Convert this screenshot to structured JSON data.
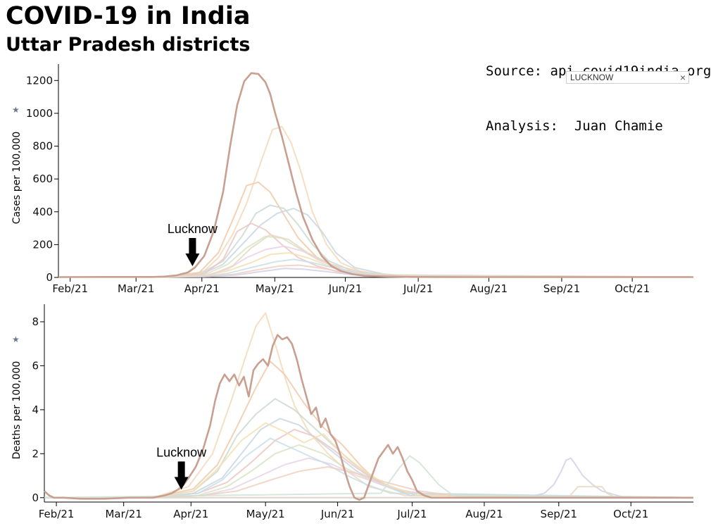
{
  "header": {
    "title": "COVID-19 in India",
    "subtitle": "Uttar Pradesh districts",
    "source_line": "Source: api.covid19india.org",
    "analysis_line": "Analysis:  Juan Chamie"
  },
  "search": {
    "value": "LUCKNOW",
    "clear_label": "×"
  },
  "colors": {
    "highlight": "#c9a090",
    "axis": "#000000",
    "arrow": "#000000"
  },
  "chart_data": [
    {
      "type": "line",
      "ylabel": "Cases per 100,000",
      "ylim": [
        0,
        1300
      ],
      "yticks": [
        0,
        200,
        400,
        600,
        800,
        1000,
        1200
      ],
      "xticks": [
        "Feb/21",
        "Mar/21",
        "Apr/21",
        "May/21",
        "Jun/21",
        "Jul/21",
        "Aug/21",
        "Sep/21",
        "Oct/21"
      ],
      "annotation": {
        "label": "Lucknow",
        "x": 57,
        "y": 60
      },
      "highlight": {
        "name": "LUCKNOW",
        "x": [
          0,
          20,
          40,
          45,
          50,
          55,
          58,
          62,
          66,
          70,
          73,
          76,
          79,
          82,
          85,
          88,
          90,
          92,
          95,
          98,
          101,
          104,
          108,
          112,
          116,
          120,
          125,
          130,
          140,
          150,
          170,
          200,
          240,
          270
        ],
        "y": [
          2,
          3,
          3,
          5,
          12,
          30,
          60,
          130,
          280,
          520,
          800,
          1050,
          1195,
          1245,
          1240,
          1190,
          1120,
          1010,
          860,
          690,
          520,
          370,
          230,
          130,
          70,
          40,
          20,
          10,
          5,
          3,
          2,
          2,
          2,
          2
        ]
      },
      "others": [
        {
          "x": [
            0,
            40,
            55,
            62,
            68,
            74,
            80,
            86,
            91,
            95,
            99,
            103,
            108,
            114,
            120,
            128,
            136,
            150,
            270
          ],
          "y": [
            2,
            3,
            10,
            40,
            120,
            260,
            450,
            700,
            900,
            920,
            820,
            650,
            400,
            200,
            90,
            40,
            20,
            8,
            2
          ]
        },
        {
          "x": [
            0,
            45,
            60,
            68,
            75,
            80,
            85,
            90,
            96,
            102,
            110,
            120,
            135,
            270
          ],
          "y": [
            2,
            4,
            30,
            150,
            380,
            560,
            580,
            520,
            380,
            240,
            120,
            50,
            15,
            2
          ]
        },
        {
          "x": [
            0,
            45,
            60,
            70,
            78,
            84,
            90,
            96,
            102,
            108,
            115,
            125,
            140,
            270
          ],
          "y": [
            2,
            4,
            20,
            100,
            250,
            390,
            440,
            420,
            320,
            200,
            100,
            40,
            10,
            2
          ]
        },
        {
          "x": [
            0,
            45,
            60,
            70,
            78,
            86,
            93,
            100,
            106,
            112,
            118,
            126,
            140,
            270
          ],
          "y": [
            2,
            4,
            15,
            80,
            200,
            320,
            390,
            420,
            380,
            280,
            150,
            60,
            15,
            2
          ]
        },
        {
          "x": [
            0,
            45,
            62,
            70,
            76,
            82,
            88,
            95,
            102,
            110,
            120,
            135,
            270
          ],
          "y": [
            2,
            3,
            20,
            110,
            280,
            330,
            290,
            200,
            120,
            70,
            30,
            10,
            2
          ]
        },
        {
          "x": [
            0,
            45,
            62,
            72,
            80,
            88,
            95,
            102,
            110,
            120,
            135,
            270
          ],
          "y": [
            2,
            3,
            15,
            80,
            180,
            250,
            240,
            180,
            110,
            50,
            15,
            2
          ]
        },
        {
          "x": [
            0,
            45,
            62,
            72,
            80,
            88,
            96,
            104,
            112,
            122,
            138,
            270
          ],
          "y": [
            2,
            3,
            10,
            50,
            120,
            170,
            190,
            160,
            100,
            45,
            12,
            2
          ]
        },
        {
          "x": [
            0,
            45,
            62,
            72,
            82,
            90,
            98,
            106,
            114,
            124,
            140,
            270
          ],
          "y": [
            2,
            3,
            8,
            40,
            90,
            140,
            150,
            120,
            75,
            30,
            10,
            2
          ]
        },
        {
          "x": [
            0,
            45,
            62,
            72,
            82,
            92,
            100,
            108,
            118,
            128,
            145,
            270
          ],
          "y": [
            2,
            3,
            6,
            25,
            60,
            95,
            110,
            90,
            55,
            25,
            8,
            2
          ]
        },
        {
          "x": [
            0,
            45,
            62,
            74,
            84,
            94,
            102,
            110,
            120,
            130,
            145,
            270
          ],
          "y": [
            2,
            3,
            5,
            18,
            45,
            70,
            75,
            60,
            35,
            15,
            5,
            2
          ]
        },
        {
          "x": [
            0,
            45,
            64,
            76,
            86,
            96,
            104,
            114,
            124,
            140,
            270
          ],
          "y": [
            2,
            3,
            5,
            15,
            35,
            55,
            50,
            35,
            18,
            6,
            2
          ]
        },
        {
          "x": [
            0,
            45,
            64,
            74,
            82,
            90,
            98,
            106,
            116,
            130,
            150,
            270
          ],
          "y": [
            2,
            3,
            12,
            70,
            180,
            260,
            230,
            150,
            80,
            30,
            8,
            2
          ]
        }
      ]
    },
    {
      "type": "line",
      "ylabel": "Deaths per 100,000",
      "ylim": [
        -0.2,
        8.8
      ],
      "yticks": [
        0,
        2,
        4,
        6,
        8
      ],
      "xticks": [
        "Feb/21",
        "Mar/21",
        "Apr/21",
        "May/21",
        "Jun/21",
        "Jul/21",
        "Aug/21",
        "Sep/21",
        "Oct/21"
      ],
      "annotation": {
        "label": "Lucknow",
        "x": 57,
        "y": 0.3
      },
      "highlight": {
        "name": "LUCKNOW",
        "x": [
          0,
          2,
          4,
          8,
          15,
          25,
          35,
          45,
          50,
          53,
          56,
          58,
          60,
          63,
          66,
          69,
          71,
          73,
          75,
          77,
          79,
          81,
          83,
          85,
          87,
          89,
          91,
          93,
          95,
          97,
          99,
          101,
          103,
          105,
          107,
          109,
          111,
          113,
          115,
          117,
          119,
          121,
          123,
          125,
          127,
          129,
          131,
          133,
          135,
          137,
          139,
          141,
          143,
          145,
          147,
          149,
          151,
          153,
          155,
          158,
          161,
          165,
          170,
          180,
          200,
          240,
          270
        ],
        "y": [
          0.3,
          0.1,
          0,
          0,
          -0.05,
          -0.05,
          0,
          0,
          0.1,
          0.2,
          0.4,
          0.6,
          0.9,
          1.4,
          2.2,
          3.3,
          4.4,
          5.2,
          5.6,
          5.3,
          5.6,
          5.1,
          5.5,
          4.6,
          5.8,
          6.1,
          6.3,
          6.0,
          6.9,
          7.4,
          7.2,
          7.3,
          7.0,
          6.3,
          5.4,
          4.6,
          3.8,
          4.1,
          3.2,
          3.6,
          2.9,
          2.6,
          2.0,
          1.2,
          0.5,
          0,
          -0.1,
          0,
          0.6,
          1.2,
          1.8,
          2.1,
          2.4,
          2.0,
          2.3,
          1.8,
          1.2,
          0.8,
          0.3,
          0.1,
          0,
          0,
          0,
          0,
          0,
          0,
          0
        ]
      },
      "others": [
        {
          "x": [
            0,
            45,
            60,
            70,
            78,
            84,
            88,
            92,
            96,
            100,
            104,
            110,
            118,
            126,
            135,
            150,
            270
          ],
          "y": [
            0,
            0,
            0.5,
            2.0,
            4.5,
            6.5,
            7.8,
            8.4,
            7.0,
            5.5,
            4.2,
            3.0,
            2.0,
            1.2,
            0.5,
            0.1,
            0
          ]
        },
        {
          "x": [
            0,
            45,
            62,
            72,
            80,
            88,
            94,
            100,
            108,
            116,
            124,
            132,
            140,
            155,
            270
          ],
          "y": [
            0,
            0,
            0.4,
            1.5,
            3.2,
            5.0,
            6.2,
            5.6,
            4.3,
            3.2,
            2.4,
            1.4,
            0.6,
            0.1,
            0
          ]
        },
        {
          "x": [
            0,
            45,
            62,
            72,
            80,
            88,
            96,
            104,
            112,
            120,
            128,
            138,
            150,
            270
          ],
          "y": [
            0,
            0,
            0.3,
            1.2,
            2.8,
            3.8,
            4.5,
            4.0,
            3.2,
            2.4,
            1.6,
            0.8,
            0.2,
            0
          ]
        },
        {
          "x": [
            0,
            45,
            62,
            74,
            82,
            90,
            98,
            106,
            114,
            122,
            130,
            140,
            152,
            270
          ],
          "y": [
            0,
            0,
            0.2,
            0.9,
            2.0,
            3.1,
            3.6,
            3.3,
            2.6,
            1.9,
            1.2,
            0.6,
            0.1,
            0
          ]
        },
        {
          "x": [
            0,
            45,
            64,
            76,
            86,
            96,
            104,
            112,
            120,
            128,
            136,
            146,
            160,
            270
          ],
          "y": [
            0,
            0,
            0.2,
            0.7,
            1.6,
            2.6,
            3.1,
            2.8,
            2.2,
            1.5,
            0.9,
            0.4,
            0.1,
            0
          ]
        },
        {
          "x": [
            0,
            45,
            64,
            76,
            86,
            96,
            106,
            116,
            126,
            136,
            146,
            160,
            270
          ],
          "y": [
            0,
            0,
            0.1,
            0.5,
            1.2,
            2.0,
            2.4,
            2.0,
            1.3,
            0.8,
            0.4,
            0.1,
            0
          ]
        },
        {
          "x": [
            0,
            45,
            66,
            78,
            90,
            100,
            110,
            120,
            130,
            140,
            150,
            165,
            270
          ],
          "y": [
            0,
            0,
            0.1,
            0.4,
            1.0,
            1.5,
            1.8,
            1.5,
            1.0,
            0.6,
            0.3,
            0.1,
            0
          ]
        },
        {
          "x": [
            0,
            45,
            62,
            72,
            82,
            92,
            100,
            108,
            116,
            124,
            132,
            142,
            155,
            270
          ],
          "y": [
            0,
            0,
            0.3,
            1.3,
            2.6,
            3.4,
            3.0,
            2.5,
            2.9,
            2.0,
            1.3,
            0.6,
            0.1,
            0
          ]
        },
        {
          "x": [
            0,
            45,
            64,
            74,
            84,
            94,
            102,
            110,
            118,
            126,
            134,
            144,
            270
          ],
          "y": [
            0,
            0,
            0.2,
            0.8,
            1.9,
            2.7,
            2.3,
            1.9,
            1.5,
            1.0,
            0.6,
            0.2,
            0
          ]
        },
        {
          "x": [
            0,
            45,
            66,
            80,
            94,
            106,
            118,
            130,
            142,
            156,
            170,
            270
          ],
          "y": [
            0,
            0,
            0.1,
            0.3,
            0.8,
            1.2,
            1.4,
            1.1,
            0.7,
            0.3,
            0.1,
            0
          ]
        },
        {
          "x": [
            0,
            200,
            208,
            212,
            215,
            217,
            219,
            221,
            224,
            228,
            232,
            240,
            270
          ],
          "y": [
            0,
            0,
            0.2,
            0.6,
            1.2,
            1.7,
            1.8,
            1.5,
            1.0,
            0.6,
            0.3,
            0.05,
            0
          ]
        },
        {
          "x": [
            0,
            218,
            222,
            224,
            232,
            234,
            238,
            270
          ],
          "y": [
            0,
            0,
            0.5,
            0.5,
            0.5,
            0.2,
            0,
            0
          ]
        },
        {
          "x": [
            0,
            140,
            144,
            148,
            152,
            156,
            160,
            164,
            170,
            270
          ],
          "y": [
            0,
            0.2,
            0.8,
            1.4,
            1.9,
            1.6,
            1.1,
            0.6,
            0.1,
            0
          ]
        }
      ]
    }
  ]
}
